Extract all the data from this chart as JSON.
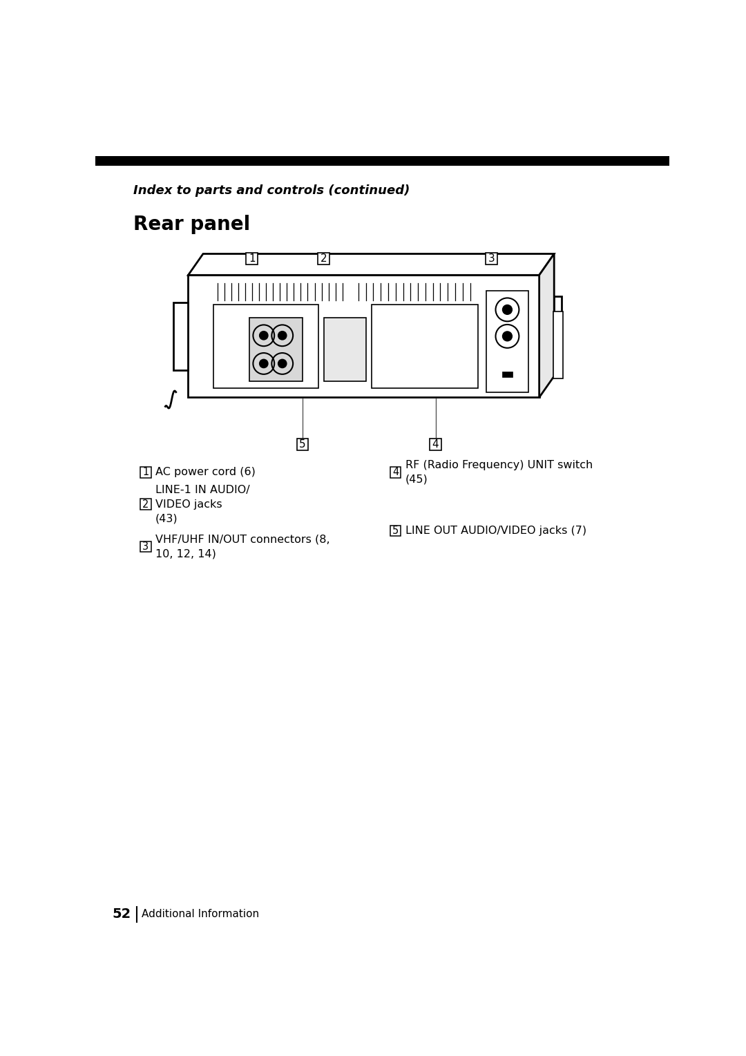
{
  "page_bg": "#ffffff",
  "top_bar_color": "#000000",
  "header_italic_text": "Index to parts and controls (continued)",
  "section_title": "Rear panel",
  "footer_page_num": "52",
  "footer_text": "Additional Information"
}
